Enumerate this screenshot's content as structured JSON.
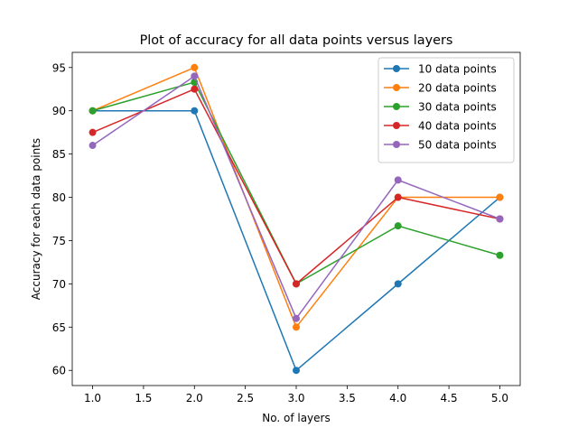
{
  "chart_data": {
    "type": "line",
    "title": "Plot of accuracy for all data points versus layers",
    "xlabel": "No. of layers",
    "ylabel": "Accuracy for each data points",
    "xlim": [
      0.8,
      5.2
    ],
    "ylim": [
      58.25,
      96.75
    ],
    "xticks": [
      1.0,
      1.5,
      2.0,
      2.5,
      3.0,
      3.5,
      4.0,
      4.5,
      5.0
    ],
    "xtick_labels": [
      "1.0",
      "1.5",
      "2.0",
      "2.5",
      "3.0",
      "3.5",
      "4.0",
      "4.5",
      "5.0"
    ],
    "yticks": [
      60,
      65,
      70,
      75,
      80,
      85,
      90,
      95
    ],
    "ytick_labels": [
      "60",
      "65",
      "70",
      "75",
      "80",
      "85",
      "90",
      "95"
    ],
    "grid": false,
    "legend_position": "upper-right",
    "x": [
      1.0,
      2.0,
      3.0,
      4.0,
      5.0
    ],
    "series": [
      {
        "name": "10 data points",
        "color": "#1f77b4",
        "values": [
          90,
          90,
          60,
          70,
          80
        ]
      },
      {
        "name": "20 data points",
        "color": "#ff7f0e",
        "values": [
          90,
          95,
          65,
          80,
          80
        ]
      },
      {
        "name": "30 data points",
        "color": "#2ca02c",
        "values": [
          90,
          93.3,
          70,
          76.7,
          73.3
        ]
      },
      {
        "name": "40 data points",
        "color": "#d62728",
        "values": [
          87.5,
          92.5,
          70,
          80,
          77.5
        ]
      },
      {
        "name": "50 data points",
        "color": "#9467bd",
        "values": [
          86,
          94,
          66,
          82,
          77.5
        ]
      }
    ]
  }
}
